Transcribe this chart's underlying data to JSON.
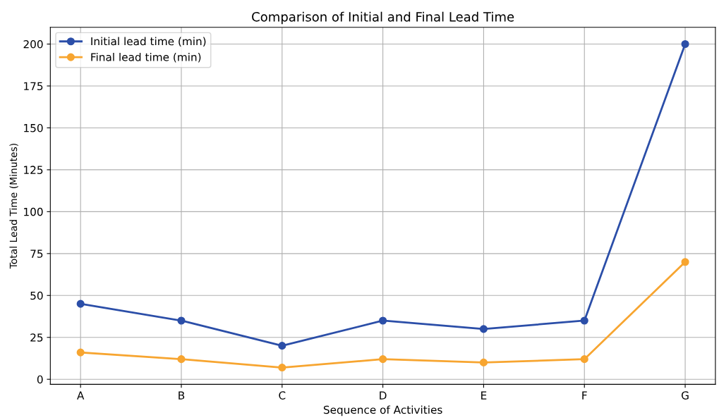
{
  "chart_data": {
    "type": "line",
    "title": "Comparison of Initial and Final Lead Time",
    "xlabel": "Sequence of Activities",
    "ylabel": "Total Lead Time (Minutes)",
    "categories": [
      "A",
      "B",
      "C",
      "D",
      "E",
      "F",
      "G"
    ],
    "series": [
      {
        "name": "Initial lead time (min)",
        "color": "#2b4ea8",
        "values": [
          45,
          35,
          20,
          35,
          30,
          35,
          200
        ]
      },
      {
        "name": "Final lead time (min)",
        "color": "#f7a530",
        "values": [
          16,
          12,
          7,
          12,
          10,
          12,
          70
        ]
      }
    ],
    "ylim": [
      -3,
      210
    ],
    "yticks": [
      0,
      25,
      50,
      75,
      100,
      125,
      150,
      175,
      200
    ],
    "grid": true,
    "legend": "top left",
    "marker": "circle",
    "line_style": "solid"
  }
}
